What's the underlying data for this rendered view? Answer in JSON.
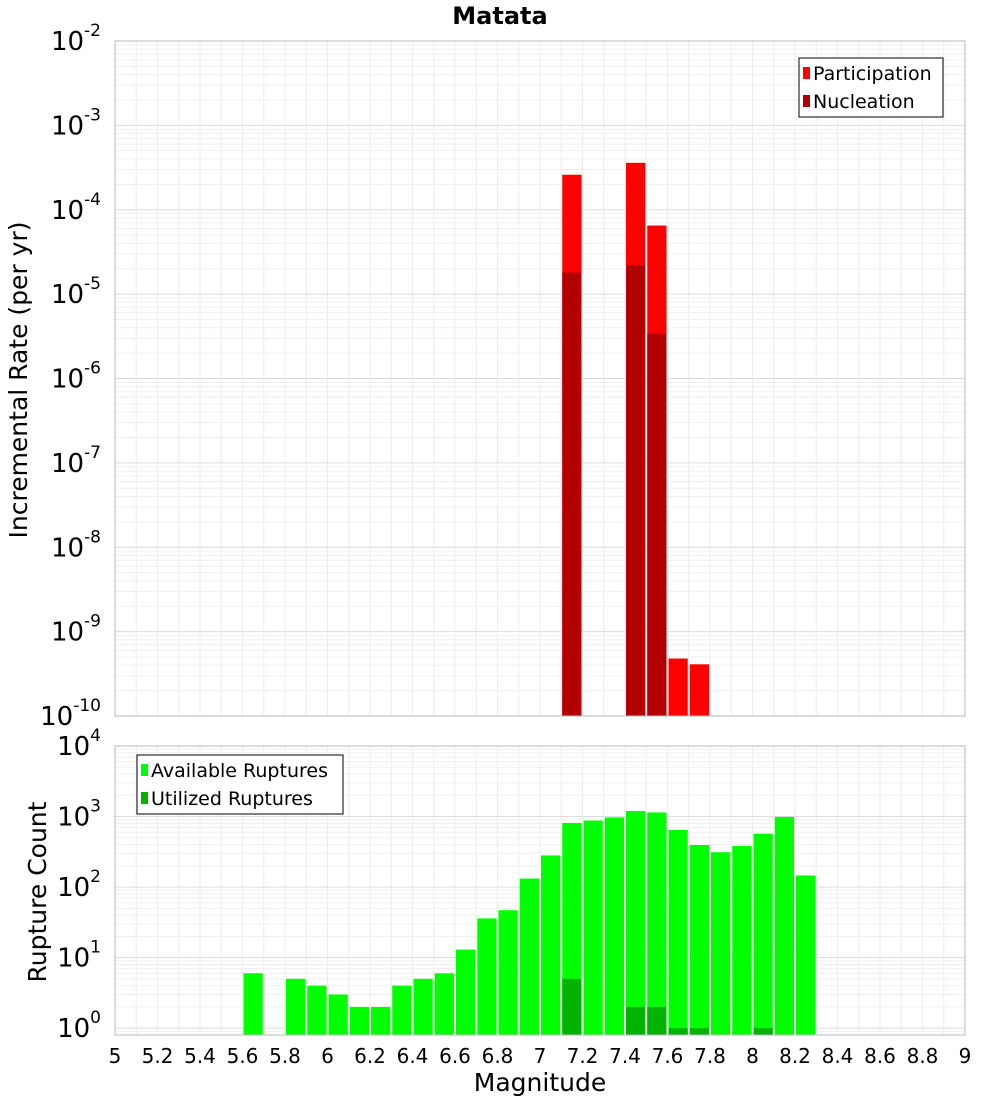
{
  "chart_data": [
    {
      "type": "bar",
      "title": "Matata",
      "ylabel": "Incremental Rate (per yr)",
      "xlabel": "",
      "yscale": "log",
      "ylim": [
        1e-10,
        0.01
      ],
      "xlim": [
        5,
        9
      ],
      "bin_width": 0.1,
      "grid": true,
      "legend_position": "top-right",
      "series": [
        {
          "name": "Participation",
          "color": "#ff0000",
          "x": [
            7.15,
            7.45,
            7.55,
            7.65,
            7.75
          ],
          "values": [
            0.00026,
            0.00036,
            6.5e-05,
            4.8e-10,
            4.1e-10
          ]
        },
        {
          "name": "Nucleation",
          "color": "#b20000",
          "x": [
            7.15,
            7.45,
            7.55
          ],
          "values": [
            1.8e-05,
            2.2e-05,
            3.4e-06
          ]
        }
      ]
    },
    {
      "type": "bar",
      "title": "",
      "ylabel": "Rupture Count",
      "xlabel": "Magnitude",
      "yscale": "log",
      "ylim": [
        0.8,
        10000
      ],
      "xlim": [
        5,
        9
      ],
      "bin_width": 0.1,
      "grid": true,
      "legend_position": "top-left",
      "x_ticks": [
        "5",
        "5.2",
        "5.4",
        "5.6",
        "5.8",
        "6",
        "6.2",
        "6.4",
        "6.6",
        "6.8",
        "7",
        "7.2",
        "7.4",
        "7.6",
        "7.8",
        "8",
        "8.2",
        "8.4",
        "8.6",
        "8.8",
        "9"
      ],
      "series": [
        {
          "name": "Available Ruptures",
          "color": "#00ff00",
          "x": [
            5.65,
            5.85,
            5.95,
            6.05,
            6.15,
            6.25,
            6.35,
            6.45,
            6.55,
            6.65,
            6.75,
            6.85,
            6.95,
            7.05,
            7.15,
            7.25,
            7.35,
            7.45,
            7.55,
            7.65,
            7.75,
            7.85,
            7.95,
            8.05,
            8.15,
            8.25
          ],
          "values": [
            6,
            5,
            4,
            3,
            2,
            2,
            4,
            5,
            6,
            13,
            36,
            47,
            132,
            281,
            811,
            877,
            970,
            1196,
            1143,
            645,
            395,
            312,
            382,
            571,
            987,
            146
          ]
        },
        {
          "name": "Utilized Ruptures",
          "color": "#00b300",
          "x": [
            7.15,
            7.45,
            7.55,
            7.65,
            7.75,
            8.05
          ],
          "values": [
            5,
            2,
            2,
            1,
            1,
            1
          ]
        }
      ]
    }
  ]
}
